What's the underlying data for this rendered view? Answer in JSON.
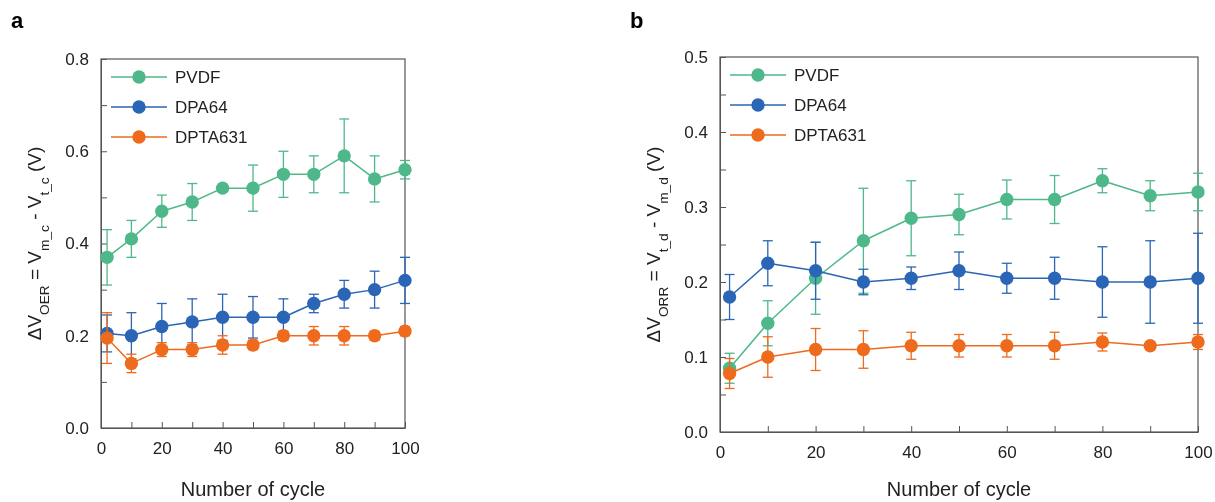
{
  "chart_data": [
    {
      "type": "line",
      "title": "a",
      "xlabel": "Number of cycle",
      "ylabel": "ΔV$_{OER}$ = V$_{m_c}$ - V$_{t_c}$ (V)",
      "x": [
        2,
        10,
        20,
        30,
        40,
        50,
        60,
        70,
        80,
        90,
        100
      ],
      "xlim": [
        0,
        100
      ],
      "xticks": [
        0,
        {
          "value": 10,
          "label": null
        },
        20,
        {
          "value": 30,
          "label": null
        },
        40,
        {
          "value": 50,
          "label": null
        },
        60,
        {
          "value": 70,
          "label": null
        },
        80,
        {
          "value": 90,
          "label": null
        },
        100
      ],
      "ylim": [
        0,
        0.8
      ],
      "yticks": [
        {
          "value": 0,
          "label": "0.0"
        },
        {
          "value": 0.1,
          "label": null
        },
        {
          "value": 0.2,
          "label": "0.2"
        },
        {
          "value": 0.3,
          "label": null
        },
        {
          "value": 0.4,
          "label": "0.4"
        },
        {
          "value": 0.5,
          "label": null
        },
        {
          "value": 0.6,
          "label": "0.6"
        },
        {
          "value": 0.7,
          "label": null
        },
        {
          "value": 0.8,
          "label": "0.8"
        }
      ],
      "marker": "circle",
      "legend": "top left",
      "grid": false,
      "series": [
        {
          "name": "PVDF",
          "color": "#4fb88a",
          "values": [
            0.37,
            0.41,
            0.47,
            0.49,
            0.52,
            0.52,
            0.55,
            0.55,
            0.59,
            0.54,
            0.56
          ],
          "errors": [
            0.06,
            0.04,
            0.035,
            0.04,
            0.005,
            0.05,
            0.05,
            0.04,
            0.08,
            0.05,
            0.02
          ]
        },
        {
          "name": "DPA64",
          "color": "#2b65b5",
          "values": [
            0.205,
            0.2,
            0.22,
            0.23,
            0.24,
            0.24,
            0.24,
            0.27,
            0.29,
            0.3,
            0.32
          ],
          "errors": [
            0.04,
            0.05,
            0.05,
            0.05,
            0.05,
            0.045,
            0.04,
            0.02,
            0.03,
            0.04,
            0.05
          ]
        },
        {
          "name": "DPTA631",
          "color": "#ee6a1c",
          "values": [
            0.195,
            0.14,
            0.17,
            0.17,
            0.18,
            0.18,
            0.2,
            0.2,
            0.2,
            0.2,
            0.21
          ],
          "errors": [
            0.055,
            0.02,
            0.015,
            0.015,
            0.02,
            0.01,
            0.01,
            0.02,
            0.02,
            0.01,
            0.01
          ]
        }
      ]
    },
    {
      "type": "line",
      "title": "b",
      "xlabel": "Number of cycle",
      "ylabel": "ΔV$_{ORR}$ = V$_{t_d}$ - V$_{m_d}$ (V)",
      "x": [
        2,
        10,
        20,
        30,
        40,
        50,
        60,
        70,
        80,
        90,
        100
      ],
      "xlim": [
        0,
        100
      ],
      "xticks": [
        0,
        {
          "value": 10,
          "label": null
        },
        20,
        {
          "value": 30,
          "label": null
        },
        40,
        {
          "value": 50,
          "label": null
        },
        60,
        {
          "value": 70,
          "label": null
        },
        80,
        {
          "value": 90,
          "label": null
        },
        100
      ],
      "ylim": [
        0,
        0.5
      ],
      "yticks": [
        {
          "value": 0,
          "label": "0.0"
        },
        {
          "value": 0.05,
          "label": null
        },
        {
          "value": 0.1,
          "label": "0.1"
        },
        {
          "value": 0.15,
          "label": null
        },
        {
          "value": 0.2,
          "label": "0.2"
        },
        {
          "value": 0.25,
          "label": null
        },
        {
          "value": 0.3,
          "label": "0.3"
        },
        {
          "value": 0.35,
          "label": null
        },
        {
          "value": 0.4,
          "label": "0.4"
        },
        {
          "value": 0.45,
          "label": null
        },
        {
          "value": 0.5,
          "label": "0.5"
        }
      ],
      "marker": "circle",
      "legend": "top left",
      "grid": false,
      "series": [
        {
          "name": "PVDF",
          "color": "#4fb88a",
          "values": [
            0.085,
            0.145,
            0.205,
            0.255,
            0.285,
            0.29,
            0.31,
            0.31,
            0.335,
            0.315,
            0.32
          ],
          "errors": [
            0.02,
            0.03,
            0.048,
            0.07,
            0.05,
            0.027,
            0.026,
            0.032,
            0.016,
            0.02,
            0.025
          ]
        },
        {
          "name": "DPA64",
          "color": "#2b65b5",
          "values": [
            0.18,
            0.225,
            0.215,
            0.2,
            0.205,
            0.215,
            0.205,
            0.205,
            0.2,
            0.2,
            0.205
          ],
          "errors": [
            0.03,
            0.03,
            0.038,
            0.017,
            0.015,
            0.025,
            0.02,
            0.028,
            0.047,
            0.055,
            0.06
          ]
        },
        {
          "name": "DPTA631",
          "color": "#ee6a1c",
          "values": [
            0.078,
            0.1,
            0.11,
            0.11,
            0.115,
            0.115,
            0.115,
            0.115,
            0.12,
            0.115,
            0.12
          ],
          "errors": [
            0.02,
            0.027,
            0.028,
            0.025,
            0.018,
            0.015,
            0.015,
            0.018,
            0.012,
            0.005,
            0.01
          ]
        }
      ]
    }
  ]
}
